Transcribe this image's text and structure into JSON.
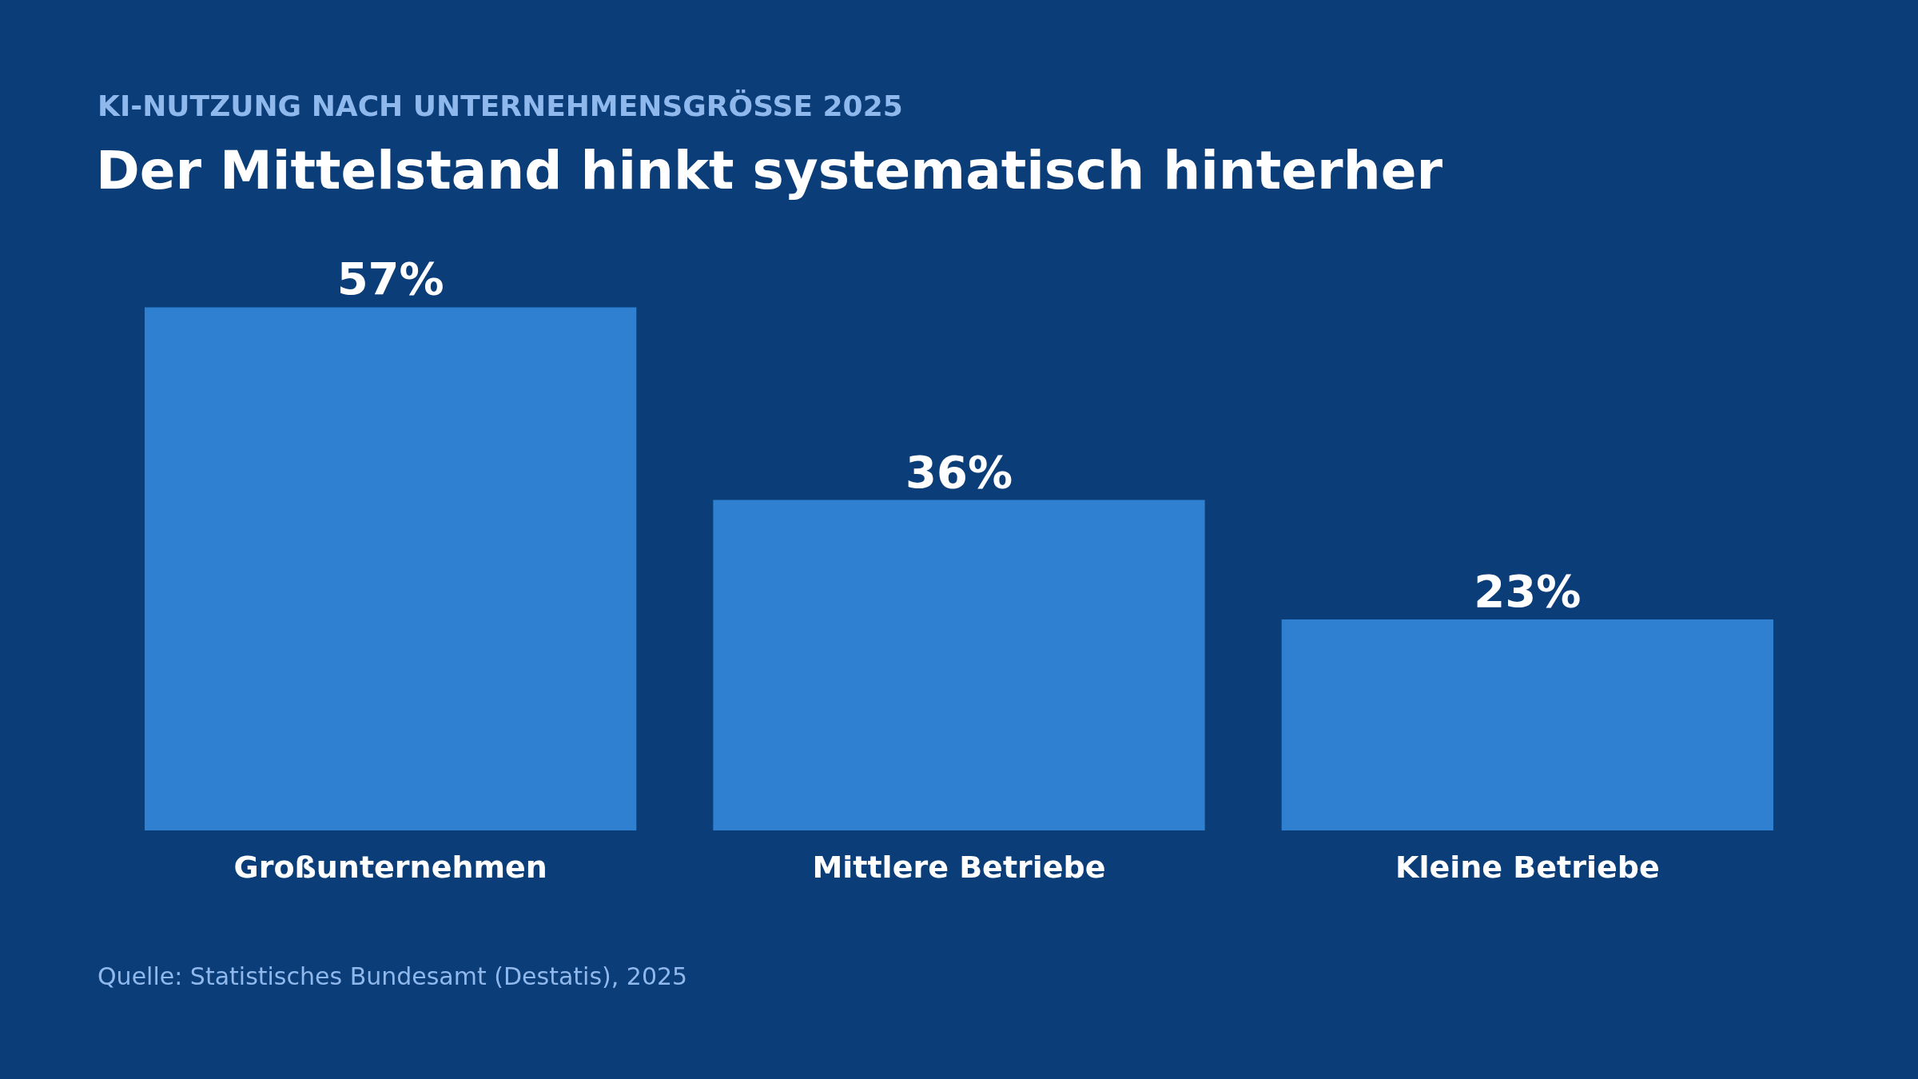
{
  "chart_data": {
    "type": "bar",
    "title": "Der Mittelstand hinkt systematisch hinterher",
    "subtitle": "KI-NUTZUNG NACH UNTERNEHMENSGRÖSSE 2025",
    "categories": [
      "Großunternehmen",
      "Mittlere Betriebe",
      "Kleine Betriebe"
    ],
    "values": [
      57,
      36,
      23
    ],
    "value_labels": [
      "57%",
      "36%",
      "23%"
    ],
    "color": "#2f80d0",
    "tick_labels": "x",
    "grid": false,
    "legend": false,
    "annotations": [
      "Quelle: Statistisches Bundesamt (Destatis), 2025"
    ]
  }
}
